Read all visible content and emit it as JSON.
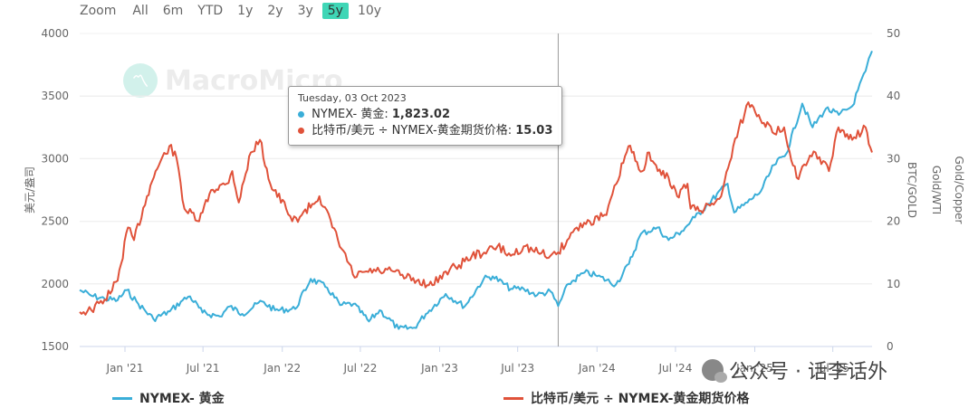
{
  "zoom": {
    "label": "Zoom",
    "options": [
      "All",
      "6m",
      "YTD",
      "1y",
      "2y",
      "3y",
      "5y",
      "10y"
    ],
    "active": "5y"
  },
  "watermark": "MacroMicro",
  "wechat": "公众号 · 话李话外",
  "tooltip": {
    "date": "Tuesday, 03 Oct 2023",
    "rows": [
      {
        "name": "NYMEX- 黄金",
        "value": "1,823.02",
        "color": "#3aaed8"
      },
      {
        "name": "比特币/美元 ÷ NYMEX-黄金期货价格",
        "value": "15.03",
        "color": "#e0523a"
      }
    ]
  },
  "chart_data": {
    "type": "line",
    "x_range": [
      "2020-09-18",
      "2025-09-30"
    ],
    "x_ticks": [
      "Jan '21",
      "Jul '21",
      "Jan '22",
      "Jul '22",
      "Jan '23",
      "Jul '23",
      "Jan '24",
      "Jul '24",
      "Jan '25",
      "Jul '25"
    ],
    "left_axis": {
      "title": "美元/盎司",
      "range": [
        1500,
        4000
      ],
      "ticks": [
        1500,
        2000,
        2500,
        3000,
        3500,
        4000
      ]
    },
    "right_axis": {
      "title1": "BTC/GOLD",
      "title2": "Gold/WTI",
      "title3": "Gold/Copper",
      "range": [
        0,
        50
      ],
      "ticks": [
        0,
        10,
        20,
        30,
        40,
        50
      ]
    },
    "crosshair_date": "2023-10-03",
    "series": [
      {
        "name": "NYMEX- 黄金",
        "axis": "left",
        "color": "#3aaed8",
        "x": [
          "2020-09-18",
          "2020-10-15",
          "2020-11-15",
          "2020-12-15",
          "2021-01-05",
          "2021-02-01",
          "2021-03-08",
          "2021-04-15",
          "2021-05-15",
          "2021-06-01",
          "2021-06-30",
          "2021-08-09",
          "2021-09-01",
          "2021-09-30",
          "2021-11-15",
          "2021-12-15",
          "2022-01-31",
          "2022-03-08",
          "2022-04-15",
          "2022-05-15",
          "2022-06-15",
          "2022-07-21",
          "2022-08-15",
          "2022-09-28",
          "2022-11-03",
          "2022-11-30",
          "2023-01-15",
          "2023-02-28",
          "2023-04-13",
          "2023-05-04",
          "2023-06-15",
          "2023-07-15",
          "2023-08-15",
          "2023-09-15",
          "2023-10-03",
          "2023-10-27",
          "2023-12-03",
          "2023-12-28",
          "2024-02-14",
          "2024-03-15",
          "2024-04-12",
          "2024-05-20",
          "2024-06-15",
          "2024-07-15",
          "2024-08-15",
          "2024-09-15",
          "2024-10-30",
          "2024-11-14",
          "2024-12-15",
          "2025-01-15",
          "2025-02-15",
          "2025-03-15",
          "2025-04-21",
          "2025-05-15",
          "2025-06-15",
          "2025-07-15",
          "2025-08-15",
          "2025-09-15",
          "2025-09-30"
        ],
        "values": [
          1950,
          1905,
          1880,
          1870,
          1950,
          1840,
          1720,
          1780,
          1870,
          1900,
          1770,
          1740,
          1820,
          1760,
          1860,
          1790,
          1800,
          2040,
          1970,
          1830,
          1840,
          1700,
          1790,
          1640,
          1650,
          1760,
          1920,
          1820,
          2040,
          2060,
          1960,
          1960,
          1910,
          1940,
          1823,
          2000,
          2090,
          2070,
          1995,
          2160,
          2400,
          2450,
          2350,
          2420,
          2530,
          2640,
          2800,
          2570,
          2650,
          2740,
          2950,
          3040,
          3440,
          3250,
          3400,
          3350,
          3420,
          3700,
          3860
        ]
      },
      {
        "name": "比特币/美元 ÷ NYMEX-黄金期货价格",
        "axis": "right",
        "color": "#e0523a",
        "x": [
          "2020-09-18",
          "2020-10-15",
          "2020-11-15",
          "2020-12-15",
          "2021-01-08",
          "2021-01-22",
          "2021-02-21",
          "2021-03-13",
          "2021-04-14",
          "2021-05-01",
          "2021-05-19",
          "2021-06-22",
          "2021-07-20",
          "2021-08-25",
          "2021-09-07",
          "2021-09-22",
          "2021-10-20",
          "2021-11-10",
          "2021-12-04",
          "2022-01-10",
          "2022-01-24",
          "2022-02-15",
          "2022-03-28",
          "2022-05-10",
          "2022-06-18",
          "2022-07-15",
          "2022-08-15",
          "2022-09-15",
          "2022-10-15",
          "2022-11-09",
          "2022-12-15",
          "2023-01-15",
          "2023-02-15",
          "2023-03-17",
          "2023-04-14",
          "2023-05-15",
          "2023-06-15",
          "2023-07-15",
          "2023-08-17",
          "2023-09-15",
          "2023-10-03",
          "2023-10-24",
          "2023-11-15",
          "2023-12-15",
          "2024-01-23",
          "2024-02-15",
          "2024-03-14",
          "2024-04-15",
          "2024-05-01",
          "2024-05-21",
          "2024-06-15",
          "2024-07-05",
          "2024-07-29",
          "2024-08-05",
          "2024-09-06",
          "2024-10-15",
          "2024-11-12",
          "2024-12-17",
          "2025-01-10",
          "2025-02-15",
          "2025-03-10",
          "2025-04-08",
          "2025-05-22",
          "2025-06-22",
          "2025-07-14",
          "2025-08-15",
          "2025-09-15",
          "2025-09-30"
        ],
        "values": [
          5.5,
          5.8,
          7.5,
          10.5,
          19,
          17,
          24,
          28,
          32,
          30,
          22,
          20,
          25,
          26,
          28,
          23,
          31,
          33,
          26,
          22,
          20,
          21,
          24,
          17,
          11,
          12,
          12,
          12,
          11,
          10.5,
          9.8,
          12,
          13,
          14.5,
          15,
          16,
          14.5,
          16,
          15,
          14.5,
          15.03,
          17,
          19,
          20,
          21,
          26,
          32,
          28,
          31,
          28,
          27,
          24,
          26,
          22,
          22,
          24,
          32,
          39,
          37,
          34,
          35,
          27,
          31,
          28,
          35,
          33,
          35,
          31
        ]
      }
    ]
  },
  "legend": [
    {
      "label": "NYMEX- 黄金",
      "color": "#3aaed8"
    },
    {
      "label": "比特币/美元 ÷ NYMEX-黄金期货价格",
      "color": "#e0523a"
    }
  ]
}
